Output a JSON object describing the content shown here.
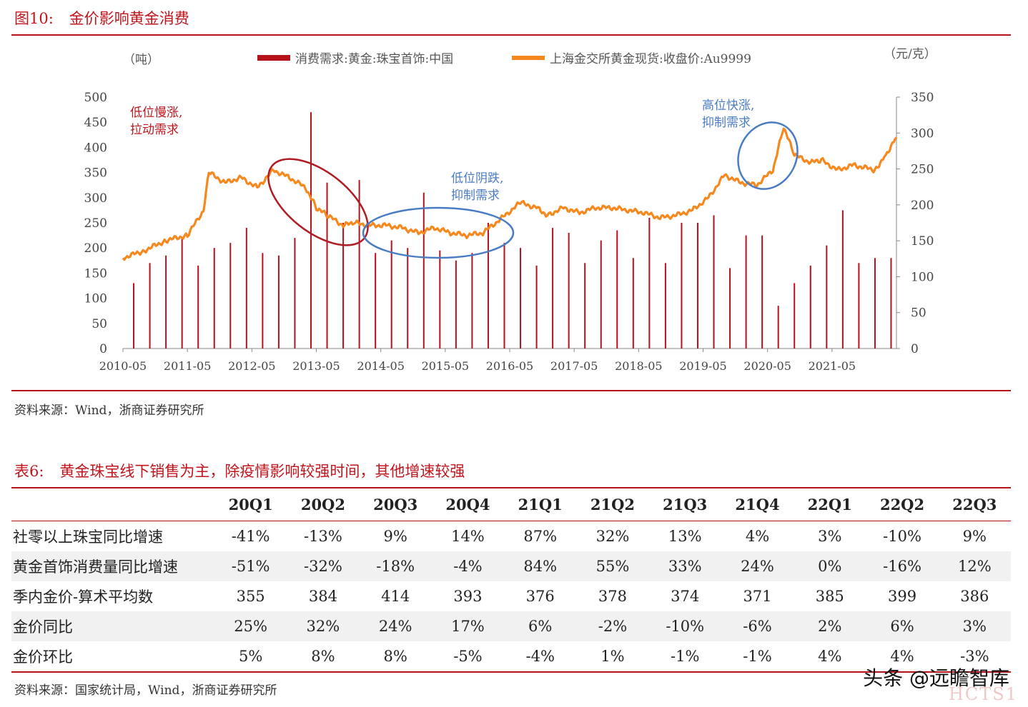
{
  "figure": {
    "label": "图10:",
    "title": "金价影响黄金消费",
    "source": "资料来源：Wind，浙商证券研究所"
  },
  "chart_data": {
    "type": "bar+line",
    "left_axis_unit": "（吨）",
    "right_axis_unit": "（元/克）",
    "legend": [
      "消费需求:黄金:珠宝首饰:中国",
      "上海金交所黄金现货:收盘价:Au9999"
    ],
    "left_ylim": [
      0,
      500
    ],
    "left_ticks": [
      0,
      50,
      100,
      150,
      200,
      250,
      300,
      350,
      400,
      450,
      500
    ],
    "right_ylim": [
      0,
      350
    ],
    "right_ticks": [
      0,
      50,
      100,
      150,
      200,
      250,
      300,
      350
    ],
    "x_ticks": [
      "2010-05",
      "2011-05",
      "2012-05",
      "2013-05",
      "2014-05",
      "2015-05",
      "2016-05",
      "2017-05",
      "2018-05",
      "2019-05",
      "2020-05",
      "2021-05"
    ],
    "x_start": "2010-05",
    "x_end": "2022-05",
    "colors": {
      "bar": "#b5121b",
      "line": "#f5891f",
      "ellipse_red": "#b01c24",
      "ellipse_blue": "#4a7cc4"
    },
    "bars": {
      "name": "消费需求:黄金:珠宝首饰:中国",
      "x": [
        "2010-07",
        "2010-10",
        "2011-01",
        "2011-04",
        "2011-07",
        "2011-10",
        "2012-01",
        "2012-04",
        "2012-07",
        "2012-10",
        "2013-01",
        "2013-04",
        "2013-07",
        "2013-10",
        "2014-01",
        "2014-04",
        "2014-07",
        "2014-10",
        "2015-01",
        "2015-04",
        "2015-07",
        "2015-10",
        "2016-01",
        "2016-04",
        "2016-07",
        "2016-10",
        "2017-01",
        "2017-04",
        "2017-07",
        "2017-10",
        "2018-01",
        "2018-04",
        "2018-07",
        "2018-10",
        "2019-01",
        "2019-04",
        "2019-07",
        "2019-10",
        "2020-01",
        "2020-04",
        "2020-07",
        "2020-10",
        "2021-01",
        "2021-04",
        "2021-07",
        "2021-10",
        "2022-01",
        "2022-04"
      ],
      "values": [
        130,
        170,
        185,
        220,
        165,
        200,
        210,
        240,
        190,
        185,
        220,
        470,
        330,
        250,
        335,
        190,
        215,
        200,
        310,
        195,
        175,
        190,
        250,
        210,
        200,
        165,
        240,
        230,
        170,
        215,
        235,
        180,
        260,
        170,
        250,
        250,
        265,
        160,
        225,
        225,
        85,
        130,
        165,
        205,
        275,
        170,
        180,
        180
      ]
    },
    "line": {
      "name": "上海金交所黄金现货:收盘价:Au9999",
      "x": [
        "2010-05",
        "2010-09",
        "2011-01",
        "2011-05",
        "2011-08",
        "2011-09",
        "2011-12",
        "2012-03",
        "2012-06",
        "2012-09",
        "2012-12",
        "2013-03",
        "2013-05",
        "2013-07",
        "2013-10",
        "2013-12",
        "2014-03",
        "2014-06",
        "2014-09",
        "2014-12",
        "2015-03",
        "2015-06",
        "2015-09",
        "2015-12",
        "2016-03",
        "2016-07",
        "2016-10",
        "2016-12",
        "2017-03",
        "2017-06",
        "2017-09",
        "2017-12",
        "2018-03",
        "2018-06",
        "2018-09",
        "2018-12",
        "2019-03",
        "2019-06",
        "2019-09",
        "2019-12",
        "2020-03",
        "2020-06",
        "2020-08",
        "2020-10",
        "2021-01",
        "2021-03",
        "2021-06",
        "2021-09",
        "2022-01",
        "2022-03",
        "2022-05"
      ],
      "values": [
        180,
        195,
        215,
        225,
        275,
        350,
        330,
        340,
        320,
        355,
        340,
        320,
        280,
        265,
        245,
        250,
        245,
        245,
        240,
        230,
        240,
        230,
        225,
        230,
        255,
        290,
        280,
        265,
        280,
        270,
        280,
        280,
        275,
        270,
        260,
        265,
        275,
        300,
        345,
        330,
        325,
        355,
        440,
        385,
        370,
        375,
        355,
        365,
        355,
        385,
        420
      ]
    },
    "annotations": [
      {
        "text": [
          "低位慢涨,",
          "拉动需求"
        ],
        "color": "#c0151d"
      },
      {
        "text": [
          "低位阴跌,",
          "抑制需求"
        ],
        "color": "#4a7cc4"
      },
      {
        "text": [
          "高位快涨,",
          "抑制需求"
        ],
        "color": "#4a7cc4"
      }
    ]
  },
  "table": {
    "label": "表6:",
    "title": "黄金珠宝线下销售为主，除疫情影响较强时间，其他增速较强",
    "headers": [
      "",
      "20Q1",
      "20Q2",
      "20Q3",
      "20Q4",
      "21Q1",
      "21Q2",
      "21Q3",
      "21Q4",
      "22Q1",
      "22Q2",
      "22Q3"
    ],
    "rows": [
      {
        "label": "社零以上珠宝同比增速",
        "values": [
          "-41%",
          "-13%",
          "9%",
          "14%",
          "87%",
          "32%",
          "13%",
          "4%",
          "3%",
          "-10%",
          "9%"
        ]
      },
      {
        "label": "黄金首饰消费量同比增速",
        "values": [
          "-51%",
          "-32%",
          "-18%",
          "-4%",
          "84%",
          "55%",
          "33%",
          "24%",
          "0%",
          "-16%",
          "12%"
        ]
      },
      {
        "label": "季内金价-算术平均数",
        "values": [
          "355",
          "384",
          "414",
          "393",
          "376",
          "378",
          "374",
          "371",
          "385",
          "399",
          "386"
        ]
      },
      {
        "label": "金价同比",
        "values": [
          "25%",
          "32%",
          "24%",
          "17%",
          "6%",
          "-2%",
          "-10%",
          "-6%",
          "2%",
          "6%",
          "3%"
        ]
      },
      {
        "label": "金价环比",
        "values": [
          "5%",
          "8%",
          "8%",
          "-5%",
          "-4%",
          "1%",
          "-1%",
          "-1%",
          "4%",
          "4%",
          "-3%"
        ]
      }
    ],
    "source": "资料来源：国家统计局，Wind，浙商证券研究所"
  },
  "watermark": {
    "text": "头条 @远瞻智库",
    "sub": "HCTS1"
  }
}
